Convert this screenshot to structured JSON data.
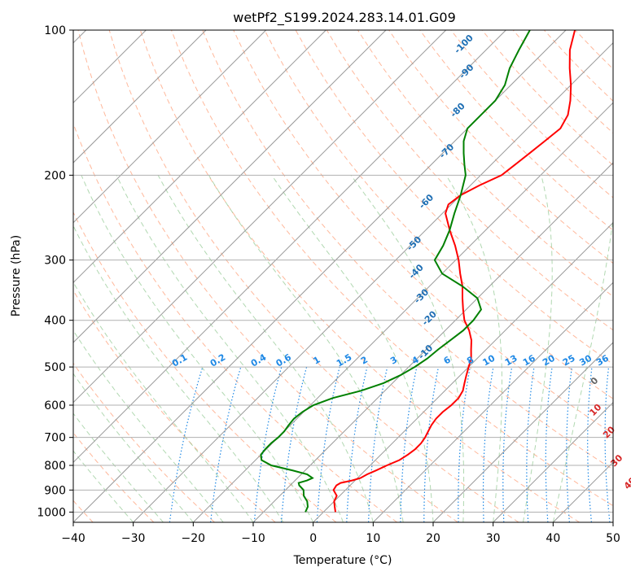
{
  "chart_data": {
    "type": "skew-t",
    "title": "wetPf2_S199.2024.283.14.01.G09",
    "xlabel": "Temperature (°C)",
    "ylabel": "Pressure (hPa)",
    "xlim": [
      -40,
      50
    ],
    "ylim": [
      1050,
      100
    ],
    "x_ticks": [
      -40,
      -30,
      -20,
      -10,
      0,
      10,
      20,
      30,
      40,
      50
    ],
    "y_ticks": [
      100,
      200,
      300,
      400,
      500,
      600,
      700,
      800,
      900,
      1000
    ],
    "grid": true,
    "series": [
      {
        "color": "#ff0000",
        "points": [
          [
            1000,
            2.0
          ],
          [
            975,
            1.0
          ],
          [
            950,
            0.0
          ],
          [
            925,
            -0.5
          ],
          [
            900,
            -2.0
          ],
          [
            880,
            -2.3
          ],
          [
            870,
            -2.0
          ],
          [
            860,
            -0.5
          ],
          [
            850,
            0.5
          ],
          [
            835,
            1.0
          ],
          [
            820,
            1.8
          ],
          [
            800,
            2.8
          ],
          [
            780,
            4.0
          ],
          [
            760,
            4.5
          ],
          [
            740,
            4.8
          ],
          [
            720,
            4.8
          ],
          [
            700,
            4.5
          ],
          [
            680,
            4.0
          ],
          [
            660,
            3.5
          ],
          [
            640,
            3.2
          ],
          [
            620,
            3.2
          ],
          [
            600,
            3.5
          ],
          [
            580,
            3.5
          ],
          [
            560,
            3.0
          ],
          [
            540,
            2.0
          ],
          [
            520,
            1.0
          ],
          [
            500,
            0.0
          ],
          [
            480,
            -1.0
          ],
          [
            460,
            -2.5
          ],
          [
            440,
            -4.0
          ],
          [
            420,
            -6.0
          ],
          [
            400,
            -8.5
          ],
          [
            380,
            -10.5
          ],
          [
            360,
            -12.5
          ],
          [
            340,
            -14.5
          ],
          [
            320,
            -17.0
          ],
          [
            300,
            -19.5
          ],
          [
            280,
            -22.5
          ],
          [
            260,
            -26.0
          ],
          [
            240,
            -29.5
          ],
          [
            230,
            -30.5
          ],
          [
            220,
            -30.0
          ],
          [
            210,
            -28.5
          ],
          [
            200,
            -26.5
          ],
          [
            190,
            -26.0
          ],
          [
            180,
            -25.5
          ],
          [
            170,
            -25.0
          ],
          [
            160,
            -24.5
          ],
          [
            150,
            -25.5
          ],
          [
            140,
            -27.5
          ],
          [
            130,
            -30.0
          ],
          [
            120,
            -33.0
          ],
          [
            110,
            -36.0
          ],
          [
            100,
            -38.5
          ]
        ]
      },
      {
        "color": "#008000",
        "points": [
          [
            1000,
            -3.0
          ],
          [
            975,
            -3.5
          ],
          [
            950,
            -4.5
          ],
          [
            925,
            -6.0
          ],
          [
            900,
            -7.0
          ],
          [
            880,
            -8.5
          ],
          [
            870,
            -9.0
          ],
          [
            860,
            -8.0
          ],
          [
            850,
            -7.5
          ],
          [
            835,
            -9.0
          ],
          [
            820,
            -12.0
          ],
          [
            800,
            -16.5
          ],
          [
            780,
            -19.0
          ],
          [
            760,
            -20.0
          ],
          [
            740,
            -20.2
          ],
          [
            720,
            -20.2
          ],
          [
            700,
            -20.0
          ],
          [
            680,
            -20.0
          ],
          [
            660,
            -20.3
          ],
          [
            640,
            -20.5
          ],
          [
            620,
            -20.2
          ],
          [
            600,
            -19.5
          ],
          [
            580,
            -17.5
          ],
          [
            560,
            -14.0
          ],
          [
            540,
            -11.5
          ],
          [
            520,
            -10.0
          ],
          [
            500,
            -9.0
          ],
          [
            480,
            -8.3
          ],
          [
            460,
            -8.0
          ],
          [
            440,
            -7.5
          ],
          [
            420,
            -7.0
          ],
          [
            400,
            -7.0
          ],
          [
            380,
            -7.5
          ],
          [
            360,
            -10.0
          ],
          [
            340,
            -14.5
          ],
          [
            320,
            -20.0
          ],
          [
            300,
            -23.5
          ],
          [
            280,
            -24.5
          ],
          [
            260,
            -26.0
          ],
          [
            240,
            -28.0
          ],
          [
            220,
            -30.0
          ],
          [
            200,
            -32.5
          ],
          [
            190,
            -34.5
          ],
          [
            180,
            -36.5
          ],
          [
            170,
            -38.5
          ],
          [
            160,
            -40.0
          ],
          [
            150,
            -40.0
          ],
          [
            140,
            -40.0
          ],
          [
            130,
            -41.0
          ],
          [
            120,
            -43.0
          ],
          [
            110,
            -44.5
          ],
          [
            100,
            -46.0
          ]
        ]
      }
    ],
    "dry_adiabat_labels": [
      "-100",
      "-90",
      "-80",
      "-70",
      "-60",
      "-50",
      "-40",
      "-30",
      "-20",
      "-10"
    ],
    "mixing_ratio_labels": [
      "0.1",
      "0.2",
      "0.4",
      "0.6",
      "1",
      "1.5",
      "2",
      "3",
      "4",
      "6",
      "8",
      "10",
      "13",
      "16",
      "20",
      "25",
      "30",
      "36"
    ],
    "wet_bulb_labels": [
      "0",
      "10",
      "20",
      "30",
      "40"
    ]
  }
}
